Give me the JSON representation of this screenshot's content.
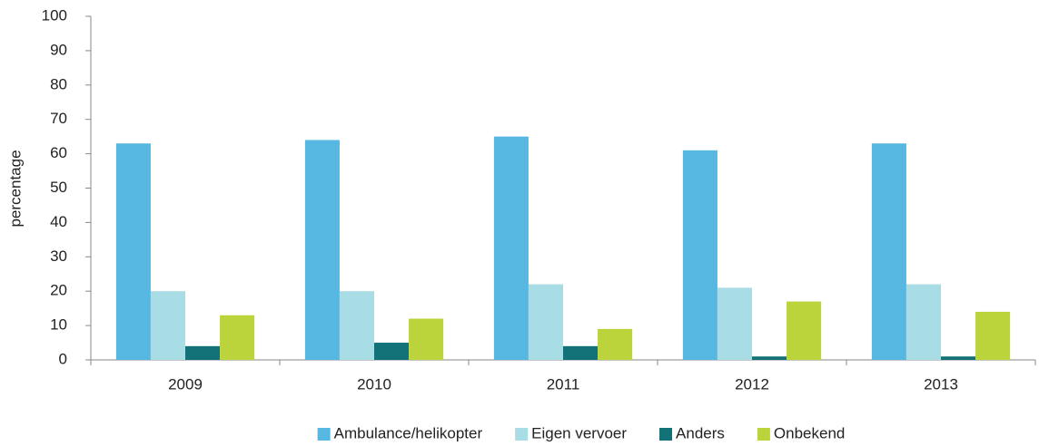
{
  "chart_data": {
    "type": "bar",
    "y_label": "percentage",
    "categories": [
      "2009",
      "2010",
      "2011",
      "2012",
      "2013"
    ],
    "series": [
      {
        "name": "Ambulance/helikopter",
        "color": "#56b8e0",
        "values": [
          63,
          64,
          65,
          61,
          63
        ]
      },
      {
        "name": "Eigen vervoer",
        "color": "#a8dde6",
        "values": [
          20,
          20,
          22,
          21,
          22
        ]
      },
      {
        "name": "Anders",
        "color": "#137277",
        "values": [
          4,
          5,
          4,
          1,
          1
        ]
      },
      {
        "name": "Onbekend",
        "color": "#bcd43b",
        "values": [
          13,
          12,
          9,
          17,
          14
        ]
      }
    ],
    "ylim": [
      0,
      100
    ],
    "yticks": [
      0,
      10,
      20,
      30,
      40,
      50,
      60,
      70,
      80,
      90,
      100
    ],
    "grid": false,
    "legend": "bottom"
  }
}
